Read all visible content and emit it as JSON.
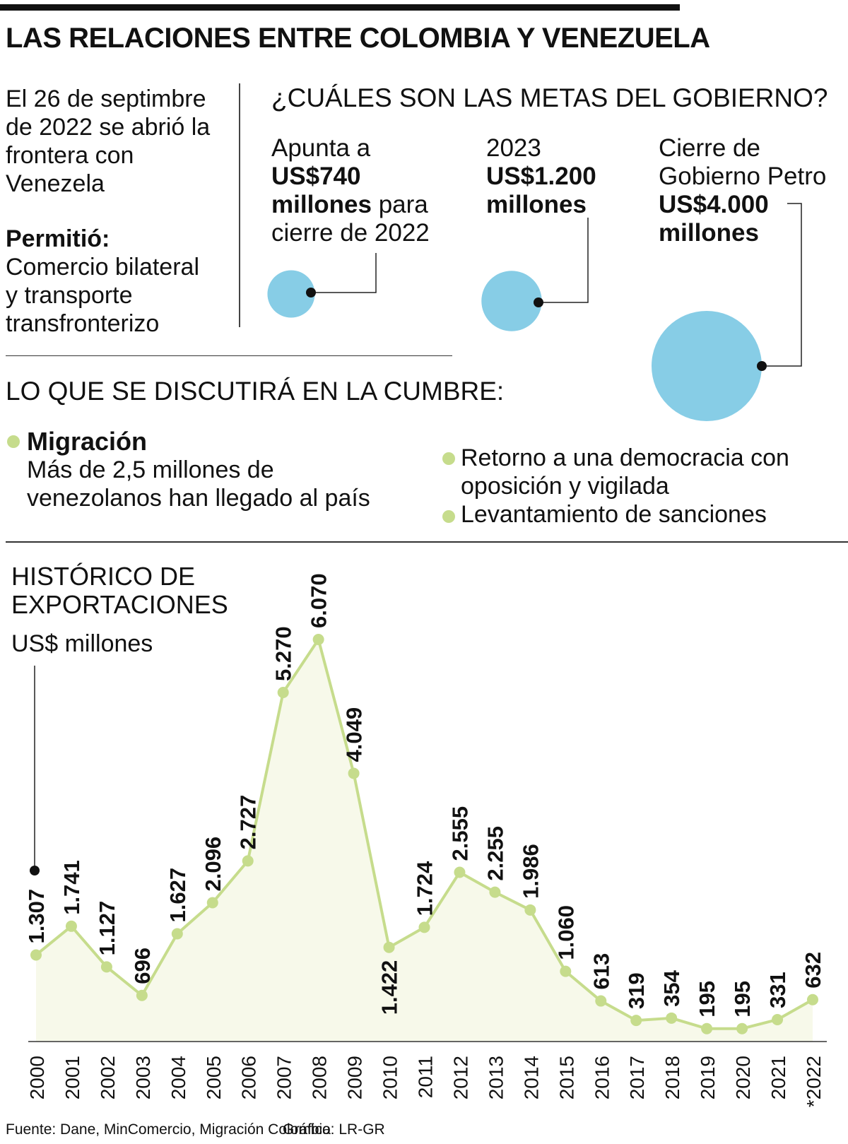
{
  "header": {
    "title": "LAS RELACIONES ENTRE COLOMBIA Y VENEZUELA"
  },
  "intro": {
    "line1": "El 26 de septimbre",
    "line2": "de 2022 se abrió la",
    "line3": "frontera con",
    "line4": "Venezela",
    "permitio_label": "Permitió:",
    "permitio_line1": "Comercio bilateral",
    "permitio_line2": "y transporte",
    "permitio_line3": "transfronterizo"
  },
  "goals": {
    "title": "¿CUÁLES SON LAS METAS DEL GOBIERNO?",
    "items": [
      {
        "pre": "Apunta a",
        "amount": "US$740",
        "unit": "millones",
        "post_unit": " para",
        "post": "cierre de 2022",
        "value": 740
      },
      {
        "pre": "2023",
        "amount": "US$1.200",
        "unit": "millones",
        "value": 1200
      },
      {
        "pre1": "Cierre de",
        "pre2": "Gobierno Petro",
        "amount": "US$4.000",
        "unit": "millones",
        "value": 4000
      }
    ],
    "bubble_color": "#87cde6"
  },
  "discussion": {
    "title": "LO QUE SE DISCUTIRÁ EN LA CUMBRE:",
    "migration_head": "Migración",
    "migration_text1": "Más de 2,5 millones de",
    "migration_text2": "venezolanos han llegado al país",
    "item2_line1": "Retorno a una democracia con",
    "item2_line2": "oposición y vigilada",
    "item3": "Levantamiento de sanciones",
    "bullet_color": "#c6dc8c"
  },
  "chart_header": {
    "title_line1": "HISTÓRICO DE",
    "title_line2": "EXPORTACIONES",
    "unit": "US$ millones"
  },
  "chart_data": {
    "type": "area",
    "title": "HISTÓRICO DE EXPORTACIONES",
    "ylabel": "US$ millones",
    "x": [
      "2000",
      "2001",
      "2002",
      "2003",
      "2004",
      "2005",
      "2006",
      "2007",
      "2008",
      "2009",
      "2010",
      "2011",
      "2012",
      "2013",
      "2014",
      "2015",
      "2016",
      "2017",
      "2018",
      "2019",
      "2020",
      "2021",
      "*2022"
    ],
    "values": [
      1307,
      1741,
      1127,
      696,
      1627,
      2096,
      2727,
      5270,
      6070,
      4049,
      1422,
      1724,
      2555,
      2255,
      1986,
      1060,
      613,
      319,
      354,
      195,
      195,
      331,
      632
    ],
    "labels": [
      "1.307",
      "1.741",
      "1.127",
      "696",
      "1.627",
      "2.096",
      "2.727",
      "5.270",
      "6.070",
      "4.049",
      "1.422",
      "1.724",
      "2.555",
      "2.255",
      "1.986",
      "1.060",
      "613",
      "319",
      "354",
      "195",
      "195",
      "331",
      "632"
    ],
    "line_color": "#c6dc8c",
    "fill_color": "#f7f9ea",
    "grid": false
  },
  "footer": {
    "source": "Fuente: Dane, MinComercio, Migración Colombia",
    "credit": "Gráfico: LR-GR"
  }
}
